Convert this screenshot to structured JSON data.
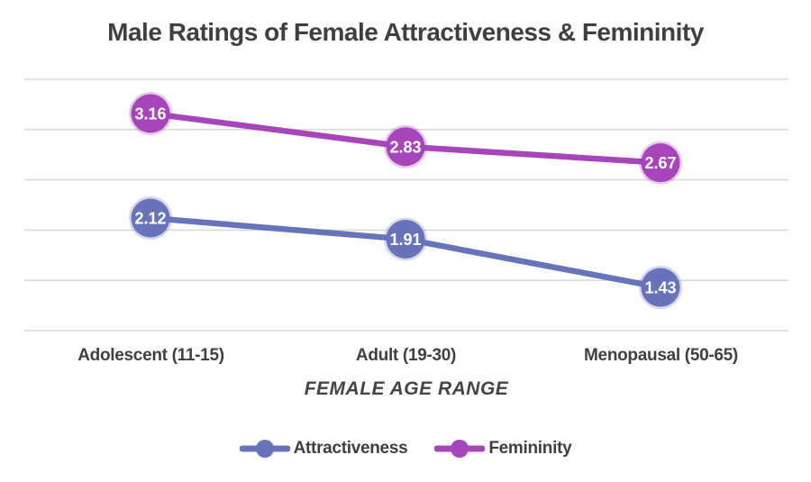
{
  "chart_data": {
    "type": "line",
    "title": "Male Ratings of Female Attractiveness & Femininity",
    "categories": [
      "Adolescent (11-15)",
      "Adult (19-30)",
      "Menopausal (50-65)"
    ],
    "series": [
      {
        "name": "Attractiveness",
        "values": [
          2.12,
          1.91,
          1.43
        ],
        "color": "#6874ba"
      },
      {
        "name": "Femininity",
        "values": [
          3.16,
          2.83,
          2.67
        ],
        "color": "#a746ba"
      }
    ],
    "xlabel": "FEMALE AGE RANGE",
    "ylabel": "",
    "ylim": [
      1.0,
      3.5
    ],
    "gridline_step": 0.5,
    "grid": true,
    "grid_color": "#d9d9d9",
    "y_tick_labels_visible": false,
    "data_labels": "on-marker, 2 decimals, white",
    "legend_position": "bottom"
  }
}
